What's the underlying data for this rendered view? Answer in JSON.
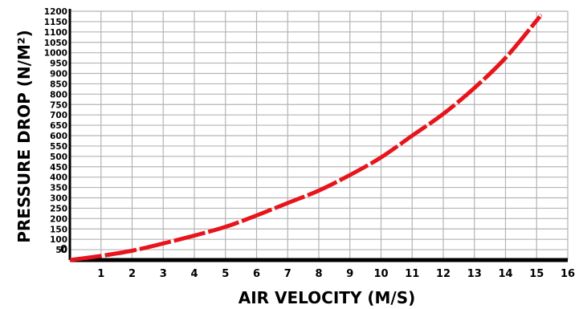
{
  "chart_data": {
    "type": "line",
    "xlabel": "AIR VELOCITY (M/S)",
    "ylabel": "PRESSURE DROP (N/M²)",
    "xlim": [
      0,
      16
    ],
    "ylim": [
      0,
      1200
    ],
    "x_ticks": [
      0,
      1,
      2,
      3,
      4,
      5,
      6,
      7,
      8,
      9,
      10,
      11,
      12,
      13,
      14,
      15,
      16
    ],
    "x_tick_labels": [
      "0",
      "1",
      "2",
      "3",
      "4",
      "5",
      "6",
      "7",
      "8",
      "9",
      "10",
      "11",
      "12",
      "13",
      "14",
      "15",
      "16"
    ],
    "y_ticks": [
      50,
      100,
      150,
      200,
      250,
      300,
      350,
      400,
      450,
      500,
      550,
      600,
      650,
      700,
      750,
      800,
      850,
      900,
      950,
      1000,
      1050,
      1100,
      1150,
      1200
    ],
    "y_tick_labels": [
      "50",
      "100",
      "150",
      "200",
      "250",
      "300",
      "350",
      "400",
      "450",
      "500",
      "550",
      "600",
      "650",
      "700",
      "750",
      "800",
      "850",
      "900",
      "950",
      "1000",
      "1050",
      "1100",
      "1150",
      "1200"
    ],
    "grid": true,
    "grid_color": "#b4b4b4",
    "line_color": "#e8141c",
    "line_style": "dashed",
    "series": [
      {
        "x": [
          0,
          1,
          2,
          3,
          4,
          5,
          6,
          7,
          8,
          9,
          10,
          11,
          12,
          13,
          14,
          15,
          15.1
        ],
        "y": [
          0,
          20,
          45,
          80,
          118,
          160,
          215,
          275,
          335,
          410,
          495,
          600,
          705,
          830,
          975,
          1155,
          1175
        ]
      }
    ]
  }
}
